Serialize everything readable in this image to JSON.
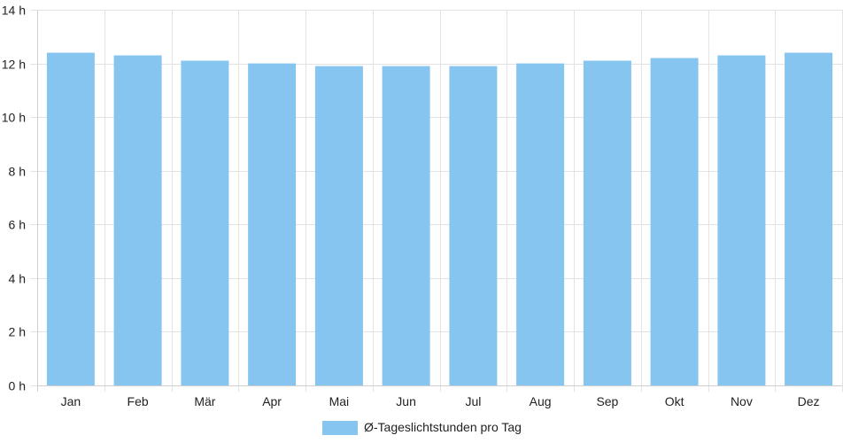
{
  "chart_data": {
    "type": "bar",
    "categories": [
      "Jan",
      "Feb",
      "Mär",
      "Apr",
      "Mai",
      "Jun",
      "Jul",
      "Aug",
      "Sep",
      "Okt",
      "Nov",
      "Dez"
    ],
    "series": [
      {
        "name": "Ø-Tageslichtstunden pro Tag",
        "values": [
          12.4,
          12.3,
          12.1,
          12.0,
          11.9,
          11.9,
          11.9,
          12.0,
          12.1,
          12.2,
          12.3,
          12.4
        ],
        "color": "#87c5f1"
      }
    ],
    "ylim": [
      0,
      14
    ],
    "yticks": [
      0,
      2,
      4,
      6,
      8,
      10,
      12,
      14
    ],
    "ytick_labels": [
      "0 h",
      "2 h",
      "4 h",
      "6 h",
      "8 h",
      "10 h",
      "12 h",
      "14 h"
    ],
    "grid": true,
    "legend_position": "bottom-center",
    "title": "",
    "xlabel": "",
    "ylabel": ""
  }
}
